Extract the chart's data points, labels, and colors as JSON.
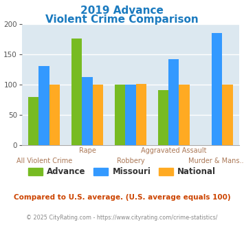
{
  "title_line1": "2019 Advance",
  "title_line2": "Violent Crime Comparison",
  "title_color": "#1a7abf",
  "advance_values": [
    80,
    176,
    100,
    91,
    0
  ],
  "missouri_values": [
    130,
    112,
    100,
    142,
    185
  ],
  "national_values": [
    100,
    100,
    101,
    100,
    100
  ],
  "advance_color": "#77bb22",
  "missouri_color": "#3399ff",
  "national_color": "#ffaa22",
  "ylim": [
    0,
    200
  ],
  "yticks": [
    0,
    50,
    100,
    150,
    200
  ],
  "plot_bg_color": "#dce8f0",
  "legend_labels": [
    "Advance",
    "Missouri",
    "National"
  ],
  "top_labels": [
    "",
    "Rape",
    "",
    "Aggravated Assault",
    ""
  ],
  "bottom_labels": [
    "All Violent Crime",
    "",
    "Robbery",
    "",
    "Murder & Mans..."
  ],
  "footnote1": "Compared to U.S. average. (U.S. average equals 100)",
  "footnote2": "© 2025 CityRating.com - https://www.cityrating.com/crime-statistics/",
  "footnote1_color": "#cc4400",
  "footnote2_color": "#888888",
  "tick_label_color": "#aa7755",
  "axis_label_fontsize": 7.0,
  "legend_fontsize": 8.5,
  "title_fontsize": 11
}
